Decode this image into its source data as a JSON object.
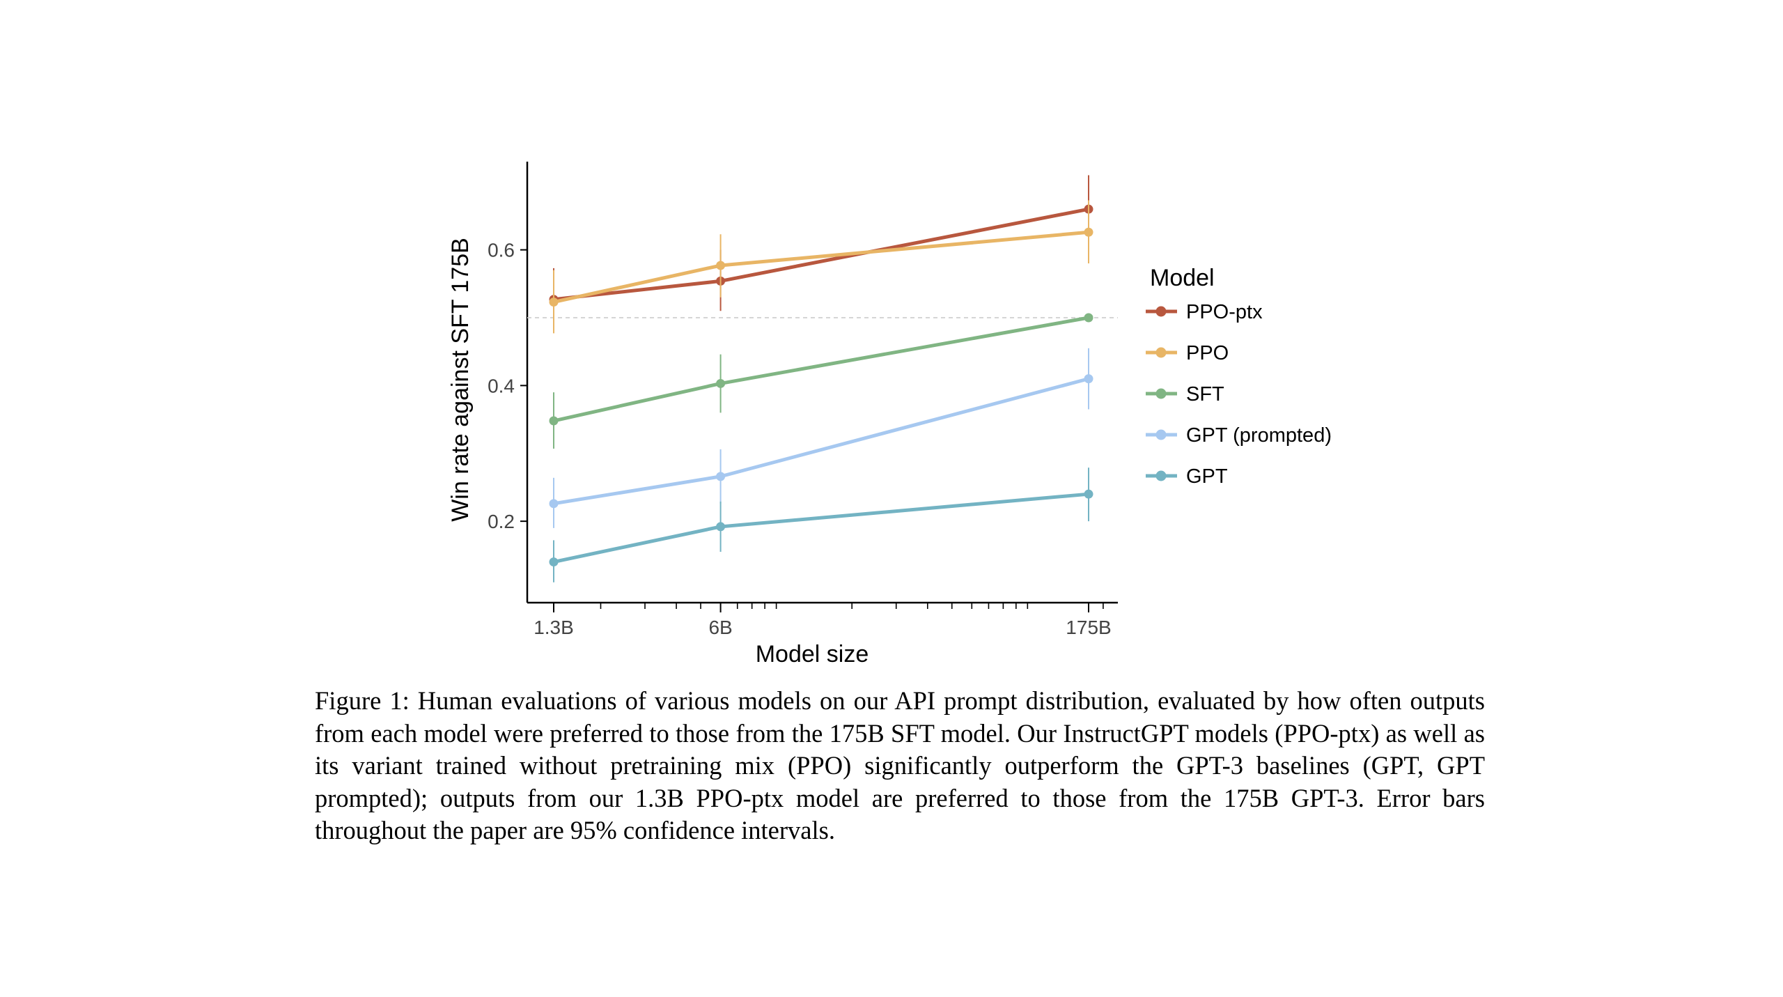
{
  "chart_data": {
    "type": "line",
    "xlabel": "Model size",
    "ylabel": "Win rate against SFT 175B",
    "x_scale": "log",
    "x_params_billions": [
      1.3,
      6,
      175
    ],
    "categories": [
      "1.3B",
      "6B",
      "175B"
    ],
    "y_ticks": [
      0.2,
      0.4,
      0.6
    ],
    "y_tick_labels": [
      "0.2",
      "0.4",
      "0.6"
    ],
    "ylim": [
      0.08,
      0.73
    ],
    "reference_line": 0.5,
    "legend_title": "Model",
    "legend_position": "right",
    "series": [
      {
        "name": "PPO-ptx",
        "color": "#B8573E",
        "values": [
          0.527,
          0.554,
          0.66
        ],
        "ci": [
          [
            0.48,
            0.573
          ],
          [
            0.51,
            0.6
          ],
          [
            0.61,
            0.71
          ]
        ]
      },
      {
        "name": "PPO",
        "color": "#E8B565",
        "values": [
          0.523,
          0.577,
          0.626
        ],
        "ci": [
          [
            0.477,
            0.57
          ],
          [
            0.53,
            0.623
          ],
          [
            0.58,
            0.673
          ]
        ]
      },
      {
        "name": "SFT",
        "color": "#80B583",
        "values": [
          0.348,
          0.403,
          0.5
        ],
        "ci": [
          [
            0.307,
            0.39
          ],
          [
            0.36,
            0.446
          ],
          [
            0.5,
            0.5
          ]
        ]
      },
      {
        "name": "GPT (prompted)",
        "color": "#A6C8F0",
        "values": [
          0.226,
          0.266,
          0.41
        ],
        "ci": [
          [
            0.19,
            0.264
          ],
          [
            0.226,
            0.306
          ],
          [
            0.365,
            0.455
          ]
        ]
      },
      {
        "name": "GPT",
        "color": "#73B3C3",
        "values": [
          0.14,
          0.192,
          0.24
        ],
        "ci": [
          [
            0.11,
            0.172
          ],
          [
            0.155,
            0.229
          ],
          [
            0.2,
            0.279
          ]
        ]
      }
    ]
  },
  "caption": "Figure 1: Human evaluations of various models on our API prompt distribution, evaluated by how often outputs from each model were preferred to those from the 175B SFT model. Our InstructGPT models (PPO-ptx) as well as its variant trained without pretraining mix (PPO) significantly outperform the GPT-3 baselines (GPT, GPT prompted); outputs from our 1.3B PPO-ptx model are preferred to those from the 175B GPT-3. Error bars throughout the paper are 95% confidence intervals."
}
